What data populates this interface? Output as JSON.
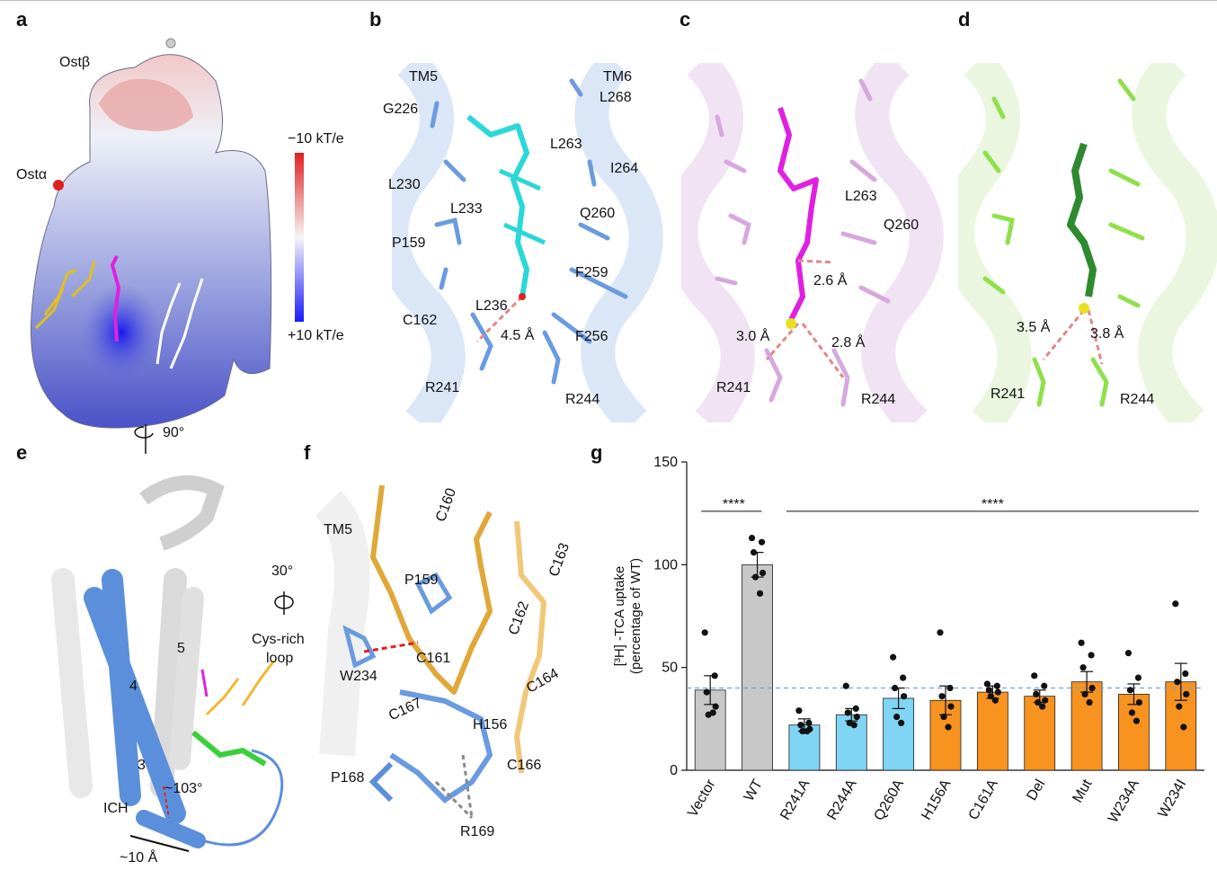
{
  "panels": {
    "a": {
      "letter": "a",
      "ost_beta": "Ostβ",
      "ost_alpha": "Ostα",
      "scale_top": "−10 kT/e",
      "scale_bottom": "+10 kT/e",
      "rotation": "90°",
      "colors": {
        "negative": "#e02020",
        "neutral": "#f5f5f5",
        "positive": "#1a1aff"
      }
    },
    "b": {
      "letter": "b",
      "labels": [
        "TM5",
        "TM6",
        "G226",
        "L268",
        "L263",
        "I264",
        "L230",
        "L233",
        "Q260",
        "P159",
        "F259",
        "L236",
        "C162",
        "4.5 Å",
        "F256",
        "R241",
        "R244"
      ],
      "ligand_color": "#2ad8d8",
      "residue_color": "#6a9be0"
    },
    "c": {
      "letter": "c",
      "labels": [
        "L263",
        "Q260",
        "2.6 Å",
        "3.0 Å",
        "2.8 Å",
        "R241",
        "R244"
      ],
      "ligand_color": "#e020e0",
      "residue_color": "#d6a8dd"
    },
    "d": {
      "letter": "d",
      "labels": [
        "3.5 Å",
        "3.8 Å",
        "R241",
        "R244"
      ],
      "ligand_color": "#2e8a2e",
      "residue_color": "#8fe04a"
    },
    "e": {
      "letter": "e",
      "labels": [
        "5",
        "4",
        "3",
        "~103°",
        "ICH",
        "~10 Å"
      ],
      "helix_color": "#5b8fdc"
    },
    "f": {
      "letter": "f",
      "labels": [
        "TM5",
        "C160",
        "P159",
        "C163",
        "C162",
        "W234",
        "C161",
        "C164",
        "C167",
        "H156",
        "C166",
        "P168",
        "R169"
      ],
      "rotation": "30°",
      "loop_label_1": "Cys-rich",
      "loop_label_2": "loop",
      "loop_color": "#f0b860"
    },
    "g": {
      "letter": "g"
    }
  },
  "chart_data": {
    "type": "bar",
    "ylabel_line1": "[³H] -TCA uptake",
    "ylabel_line2": "(percentage of WT)",
    "ylim": [
      0,
      150
    ],
    "yticks": [
      "0",
      "50",
      "100",
      "150"
    ],
    "categories": [
      "Vector",
      "WT",
      "R241A",
      "R244A",
      "Q260A",
      "H156A",
      "C161A",
      "Del",
      "Mut",
      "W234A",
      "W234I"
    ],
    "values": [
      39,
      100,
      22,
      27,
      35,
      34,
      38,
      36,
      43,
      37,
      43
    ],
    "errors": [
      7,
      6,
      3,
      3,
      5,
      7,
      3,
      3,
      5,
      5,
      9
    ],
    "colors": [
      "#c8c8c8",
      "#c8c8c8",
      "#80d4f4",
      "#80d4f4",
      "#80d4f4",
      "#f7931e",
      "#f7931e",
      "#f7931e",
      "#f7931e",
      "#f7931e",
      "#f7931e"
    ],
    "points": [
      [
        67,
        46,
        38,
        31,
        27,
        28
      ],
      [
        113,
        111,
        106,
        96,
        94,
        86
      ],
      [
        29,
        23,
        22,
        20,
        19,
        19
      ],
      [
        41,
        30,
        28,
        26,
        23,
        22
      ],
      [
        55,
        45,
        40,
        36,
        26,
        23
      ],
      [
        67,
        40,
        36,
        31,
        26,
        21
      ],
      [
        42,
        41,
        39,
        38,
        36,
        34
      ],
      [
        46,
        41,
        37,
        34,
        33,
        31
      ],
      [
        62,
        56,
        50,
        40,
        37,
        33
      ],
      [
        57,
        45,
        39,
        33,
        28,
        24
      ],
      [
        81,
        47,
        43,
        37,
        31,
        21
      ]
    ],
    "reference_line": 40,
    "sig_label_1": "****",
    "sig_label_2": "****"
  }
}
